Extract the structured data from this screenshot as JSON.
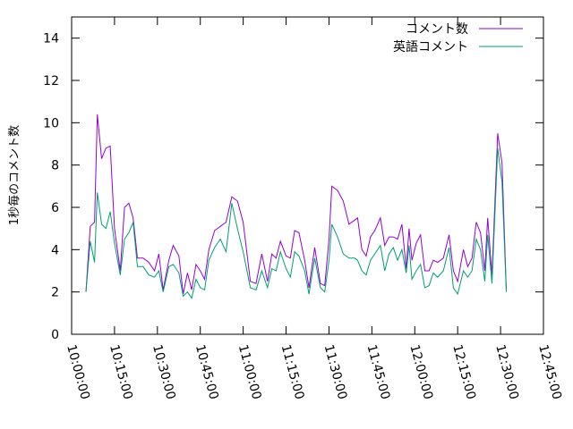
{
  "chart_data": {
    "type": "line",
    "title": "",
    "xlabel": "",
    "ylabel": "1秒毎のコメント数",
    "ylim": [
      0,
      15
    ],
    "xlim": [
      "10:00:00",
      "12:45:00"
    ],
    "yticks": [
      "0",
      "2",
      "4",
      "6",
      "8",
      "10",
      "12",
      "14"
    ],
    "xticks": [
      "10:00:00",
      "10:15:00",
      "10:30:00",
      "10:45:00",
      "11:00:00",
      "11:15:00",
      "11:30:00",
      "11:45:00",
      "12:00:00",
      "12:15:00",
      "12:30:00",
      "12:45:00"
    ],
    "grid": false,
    "legend_position": "top-right",
    "series": [
      {
        "name": "コメント数",
        "color": "#9400d3",
        "points": [
          [
            "10:05:00",
            2.0
          ],
          [
            "10:06:30",
            5.1
          ],
          [
            "10:08:00",
            5.3
          ],
          [
            "10:09:00",
            10.4
          ],
          [
            "10:10:30",
            8.3
          ],
          [
            "10:12:00",
            8.8
          ],
          [
            "10:13:30",
            8.9
          ],
          [
            "10:15:00",
            5.0
          ],
          [
            "10:17:00",
            3.0
          ],
          [
            "10:18:30",
            6.0
          ],
          [
            "10:20:00",
            6.2
          ],
          [
            "10:21:30",
            5.5
          ],
          [
            "10:23:00",
            3.6
          ],
          [
            "10:25:00",
            3.6
          ],
          [
            "10:27:00",
            3.4
          ],
          [
            "10:29:00",
            3.0
          ],
          [
            "10:30:30",
            3.8
          ],
          [
            "10:32:00",
            2.1
          ],
          [
            "10:34:00",
            3.5
          ],
          [
            "10:35:30",
            4.2
          ],
          [
            "10:37:30",
            3.7
          ],
          [
            "10:39:00",
            1.9
          ],
          [
            "10:40:30",
            2.9
          ],
          [
            "10:42:00",
            2.1
          ],
          [
            "10:43:30",
            3.3
          ],
          [
            "10:45:00",
            3.0
          ],
          [
            "10:46:30",
            2.6
          ],
          [
            "10:48:00",
            4.0
          ],
          [
            "10:50:00",
            4.9
          ],
          [
            "10:52:00",
            5.1
          ],
          [
            "10:54:00",
            5.3
          ],
          [
            "10:56:00",
            6.5
          ],
          [
            "10:58:00",
            6.3
          ],
          [
            "11:00:00",
            5.3
          ],
          [
            "11:02:30",
            2.5
          ],
          [
            "11:04:30",
            2.4
          ],
          [
            "11:06:30",
            3.8
          ],
          [
            "11:08:30",
            2.5
          ],
          [
            "11:10:00",
            3.8
          ],
          [
            "11:11:30",
            3.6
          ],
          [
            "11:13:00",
            4.4
          ],
          [
            "11:15:00",
            3.7
          ],
          [
            "11:16:30",
            3.6
          ],
          [
            "11:18:00",
            4.9
          ],
          [
            "11:19:30",
            4.8
          ],
          [
            "11:21:30",
            3.5
          ],
          [
            "11:23:00",
            2.2
          ],
          [
            "11:25:00",
            4.1
          ],
          [
            "11:27:00",
            2.4
          ],
          [
            "11:28:30",
            2.3
          ],
          [
            "11:30:00",
            4.5
          ],
          [
            "11:31:00",
            7.0
          ],
          [
            "11:33:00",
            6.8
          ],
          [
            "11:35:00",
            6.3
          ],
          [
            "11:37:00",
            5.2
          ],
          [
            "11:39:00",
            5.4
          ],
          [
            "11:40:00",
            5.5
          ],
          [
            "11:41:30",
            4.0
          ],
          [
            "11:43:00",
            3.7
          ],
          [
            "11:44:30",
            4.6
          ],
          [
            "11:46:00",
            4.9
          ],
          [
            "11:48:00",
            5.5
          ],
          [
            "11:49:30",
            4.2
          ],
          [
            "11:51:00",
            4.6
          ],
          [
            "11:52:30",
            4.6
          ],
          [
            "11:54:00",
            4.5
          ],
          [
            "11:55:30",
            5.2
          ],
          [
            "11:57:00",
            3.1
          ],
          [
            "11:58:00",
            5.0
          ],
          [
            "11:59:00",
            3.5
          ],
          [
            "12:00:30",
            4.3
          ],
          [
            "12:02:00",
            4.7
          ],
          [
            "12:03:30",
            3.0
          ],
          [
            "12:05:00",
            3.0
          ],
          [
            "12:06:30",
            3.5
          ],
          [
            "12:08:00",
            3.4
          ],
          [
            "12:10:00",
            3.6
          ],
          [
            "12:12:00",
            4.7
          ],
          [
            "12:13:30",
            3.0
          ],
          [
            "12:15:00",
            2.5
          ],
          [
            "12:17:00",
            4.0
          ],
          [
            "12:18:30",
            3.2
          ],
          [
            "12:20:00",
            3.6
          ],
          [
            "12:21:30",
            5.3
          ],
          [
            "12:23:00",
            4.8
          ],
          [
            "12:24:30",
            3.0
          ],
          [
            "12:25:30",
            5.5
          ],
          [
            "12:27:00",
            2.8
          ],
          [
            "12:29:00",
            9.5
          ],
          [
            "12:30:30",
            8.1
          ],
          [
            "12:32:00",
            2.1
          ]
        ]
      },
      {
        "name": "英語コメント",
        "color": "#009e73",
        "points": [
          [
            "10:05:00",
            2.0
          ],
          [
            "10:06:30",
            4.4
          ],
          [
            "10:08:00",
            3.4
          ],
          [
            "10:09:00",
            6.7
          ],
          [
            "10:10:30",
            5.2
          ],
          [
            "10:12:00",
            5.0
          ],
          [
            "10:13:30",
            5.8
          ],
          [
            "10:15:00",
            4.3
          ],
          [
            "10:17:00",
            2.8
          ],
          [
            "10:18:30",
            4.5
          ],
          [
            "10:20:00",
            4.8
          ],
          [
            "10:21:30",
            5.3
          ],
          [
            "10:23:00",
            3.2
          ],
          [
            "10:25:00",
            3.2
          ],
          [
            "10:27:00",
            2.8
          ],
          [
            "10:29:00",
            2.7
          ],
          [
            "10:30:30",
            3.0
          ],
          [
            "10:32:00",
            2.0
          ],
          [
            "10:34:00",
            3.2
          ],
          [
            "10:35:30",
            3.3
          ],
          [
            "10:37:30",
            2.9
          ],
          [
            "10:39:00",
            1.8
          ],
          [
            "10:40:30",
            2.0
          ],
          [
            "10:42:00",
            1.7
          ],
          [
            "10:43:30",
            2.6
          ],
          [
            "10:45:00",
            2.2
          ],
          [
            "10:46:30",
            2.1
          ],
          [
            "10:48:00",
            3.5
          ],
          [
            "10:50:00",
            4.1
          ],
          [
            "10:52:00",
            4.5
          ],
          [
            "10:54:00",
            3.9
          ],
          [
            "10:56:00",
            6.2
          ],
          [
            "10:58:00",
            5.0
          ],
          [
            "11:00:00",
            3.9
          ],
          [
            "11:02:30",
            2.2
          ],
          [
            "11:04:30",
            2.1
          ],
          [
            "11:06:30",
            3.0
          ],
          [
            "11:08:30",
            2.2
          ],
          [
            "11:10:00",
            3.1
          ],
          [
            "11:11:30",
            3.0
          ],
          [
            "11:13:00",
            3.9
          ],
          [
            "11:15:00",
            3.1
          ],
          [
            "11:16:30",
            2.7
          ],
          [
            "11:18:00",
            3.9
          ],
          [
            "11:19:30",
            3.7
          ],
          [
            "11:21:30",
            3.0
          ],
          [
            "11:23:00",
            1.9
          ],
          [
            "11:25:00",
            3.6
          ],
          [
            "11:27:00",
            2.2
          ],
          [
            "11:28:30",
            2.0
          ],
          [
            "11:30:00",
            3.5
          ],
          [
            "11:31:00",
            5.2
          ],
          [
            "11:33:00",
            4.6
          ],
          [
            "11:35:00",
            3.8
          ],
          [
            "11:37:00",
            3.6
          ],
          [
            "11:39:00",
            3.6
          ],
          [
            "11:40:00",
            3.5
          ],
          [
            "11:41:30",
            3.0
          ],
          [
            "11:43:00",
            2.8
          ],
          [
            "11:44:30",
            3.5
          ],
          [
            "11:46:00",
            3.8
          ],
          [
            "11:48:00",
            4.2
          ],
          [
            "11:49:30",
            3.0
          ],
          [
            "11:51:00",
            3.8
          ],
          [
            "11:52:30",
            4.1
          ],
          [
            "11:54:00",
            3.5
          ],
          [
            "11:55:30",
            4.0
          ],
          [
            "11:57:00",
            2.9
          ],
          [
            "11:58:00",
            4.2
          ],
          [
            "11:59:00",
            2.6
          ],
          [
            "12:00:30",
            3.0
          ],
          [
            "12:02:00",
            3.3
          ],
          [
            "12:03:30",
            2.2
          ],
          [
            "12:05:00",
            2.3
          ],
          [
            "12:06:30",
            2.9
          ],
          [
            "12:08:00",
            2.7
          ],
          [
            "12:10:00",
            3.0
          ],
          [
            "12:12:00",
            4.1
          ],
          [
            "12:13:30",
            2.2
          ],
          [
            "12:15:00",
            1.9
          ],
          [
            "12:17:00",
            3.0
          ],
          [
            "12:18:30",
            2.7
          ],
          [
            "12:20:00",
            3.0
          ],
          [
            "12:21:30",
            4.5
          ],
          [
            "12:23:00",
            4.0
          ],
          [
            "12:24:30",
            2.5
          ],
          [
            "12:25:30",
            4.7
          ],
          [
            "12:27:00",
            2.4
          ],
          [
            "12:29:00",
            8.8
          ],
          [
            "12:30:30",
            7.2
          ],
          [
            "12:32:00",
            2.0
          ]
        ]
      }
    ]
  }
}
